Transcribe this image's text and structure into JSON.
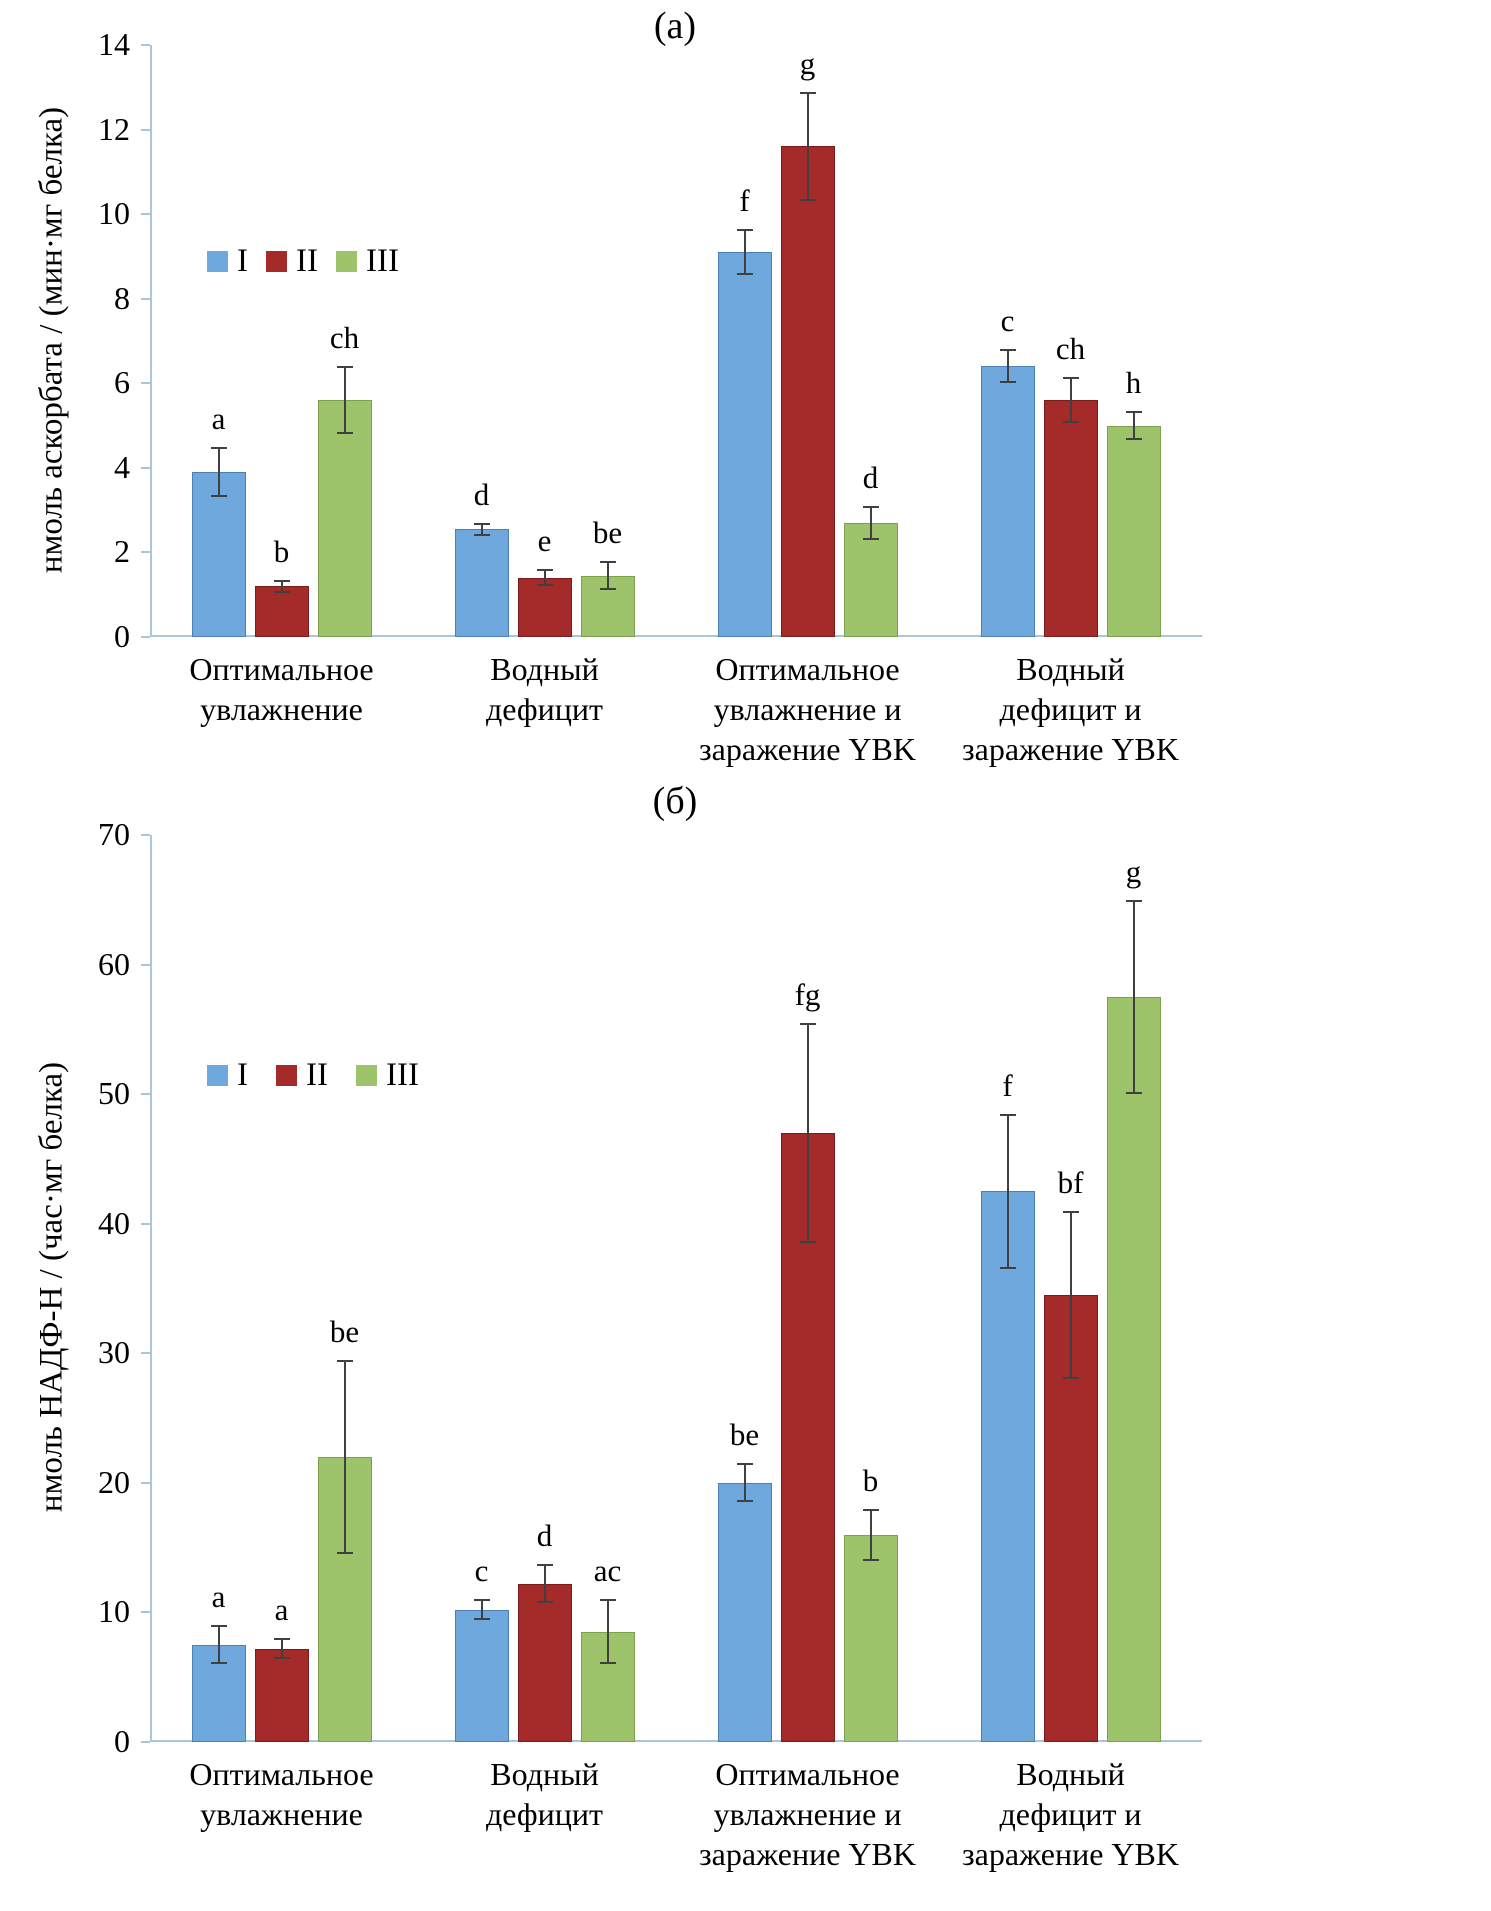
{
  "chart_data": [
    {
      "type": "bar",
      "panel_title": "(а)",
      "ylabel": "нмоль аскорбата / (мин·мг белка)",
      "ylim": [
        0,
        14
      ],
      "ytick_step": 2,
      "grid": false,
      "legend_position": "inside-upper-left",
      "categories": [
        "Оптимальное\nувлажнение",
        "Водный\nдефицит",
        "Оптимальное\nувлажнение и\nзаражение YBK",
        "Водный\nдефицит и\nзаражение YBK"
      ],
      "series": [
        {
          "name": "I",
          "color": "#6fa8dc",
          "edge": "#4d7fb5",
          "values": [
            3.9,
            2.55,
            9.1,
            6.4
          ],
          "errors": [
            0.6,
            0.15,
            0.55,
            0.4
          ],
          "letters": [
            "a",
            "d",
            "f",
            "c"
          ]
        },
        {
          "name": "II",
          "color": "#a52a2a",
          "edge": "#7a1c1c",
          "values": [
            1.2,
            1.4,
            11.6,
            5.6
          ],
          "errors": [
            0.15,
            0.2,
            1.3,
            0.55
          ],
          "letters": [
            "b",
            "e",
            "g",
            "ch"
          ]
        },
        {
          "name": "III",
          "color": "#9dc36b",
          "edge": "#7da04e",
          "values": [
            5.6,
            1.45,
            2.7,
            5.0
          ],
          "errors": [
            0.8,
            0.35,
            0.4,
            0.35
          ],
          "letters": [
            "ch",
            "be",
            "d",
            "h"
          ]
        }
      ]
    },
    {
      "type": "bar",
      "panel_title": "(б)",
      "ylabel": "нмоль НАДФ-Н / (час·мг белка)",
      "ylim": [
        0,
        70
      ],
      "ytick_step": 10,
      "grid": false,
      "legend_position": "inside-upper-left",
      "categories": [
        "Оптимальное\nувлажнение",
        "Водный\nдефицит",
        "Оптимальное\nувлажнение и\nзаражение YBK",
        "Водный\nдефицит и\nзаражение YBK"
      ],
      "series": [
        {
          "name": "I",
          "color": "#6fa8dc",
          "edge": "#4d7fb5",
          "values": [
            7.5,
            10.2,
            20.0,
            42.5
          ],
          "errors": [
            1.5,
            0.8,
            1.5,
            6.0
          ],
          "letters": [
            "a",
            "c",
            "be",
            "f"
          ]
        },
        {
          "name": "II",
          "color": "#a52a2a",
          "edge": "#7a1c1c",
          "values": [
            7.2,
            12.2,
            47.0,
            34.5
          ],
          "errors": [
            0.8,
            1.5,
            8.5,
            6.5
          ],
          "letters": [
            "a",
            "d",
            "fg",
            "bf"
          ]
        },
        {
          "name": "III",
          "color": "#9dc36b",
          "edge": "#7da04e",
          "values": [
            22.0,
            8.5,
            16.0,
            57.5
          ],
          "errors": [
            7.5,
            2.5,
            2.0,
            7.5
          ],
          "letters": [
            "be",
            "ac",
            "b",
            "g"
          ]
        }
      ]
    }
  ]
}
